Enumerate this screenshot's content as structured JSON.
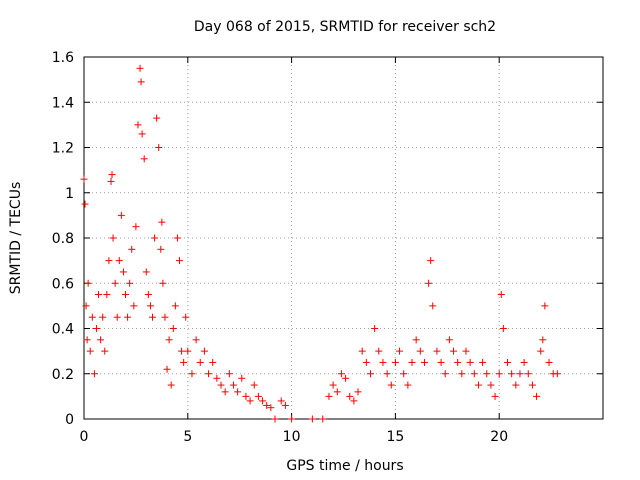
{
  "chart_data": {
    "type": "scatter",
    "title": "Day 068 of 2015, SRMTID for receiver sch2",
    "xlabel": "GPS time / hours",
    "ylabel": "SRMTID / TECUs",
    "xlim": [
      0,
      25
    ],
    "ylim": [
      0,
      1.6
    ],
    "x_ticks": [
      0,
      5,
      10,
      15,
      20
    ],
    "x_tick_labels": [
      "0",
      "5",
      "10",
      "15",
      "20"
    ],
    "y_ticks": [
      0,
      0.2,
      0.4,
      0.6,
      0.8,
      1.0,
      1.2,
      1.4,
      1.6
    ],
    "y_tick_labels": [
      "0",
      "0.2",
      "0.4",
      "0.6",
      "0.8",
      "1",
      "1.2",
      "1.4",
      "1.6"
    ],
    "grid": true,
    "marker": "+",
    "marker_color": "#ff0000",
    "series": [
      {
        "name": "SRMTID",
        "x": [
          0.0,
          0.05,
          0.1,
          0.15,
          0.2,
          0.3,
          0.4,
          0.5,
          0.6,
          0.7,
          0.8,
          0.9,
          1.0,
          1.1,
          1.2,
          1.3,
          1.35,
          1.4,
          1.5,
          1.6,
          1.7,
          1.8,
          1.9,
          2.0,
          2.1,
          2.2,
          2.3,
          2.4,
          2.5,
          2.6,
          2.7,
          2.75,
          2.8,
          2.9,
          3.0,
          3.1,
          3.2,
          3.3,
          3.4,
          3.5,
          3.6,
          3.7,
          3.75,
          3.8,
          3.9,
          4.0,
          4.1,
          4.2,
          4.3,
          4.4,
          4.5,
          4.6,
          4.7,
          4.8,
          4.9,
          5.0,
          5.2,
          5.4,
          5.6,
          5.8,
          6.0,
          6.2,
          6.4,
          6.6,
          6.8,
          7.0,
          7.2,
          7.4,
          7.6,
          7.8,
          8.0,
          8.2,
          8.4,
          8.6,
          8.8,
          9.0,
          9.2,
          9.5,
          9.7,
          10.0,
          11.0,
          11.5,
          11.8,
          12.0,
          12.2,
          12.4,
          12.6,
          12.8,
          13.0,
          13.2,
          13.4,
          13.6,
          13.8,
          14.0,
          14.2,
          14.4,
          14.6,
          14.8,
          15.0,
          15.2,
          15.4,
          15.6,
          15.8,
          16.0,
          16.2,
          16.4,
          16.6,
          16.7,
          16.8,
          17.0,
          17.2,
          17.4,
          17.6,
          17.8,
          18.0,
          18.2,
          18.4,
          18.6,
          18.8,
          19.0,
          19.2,
          19.4,
          19.6,
          19.8,
          20.0,
          20.1,
          20.2,
          20.4,
          20.6,
          20.8,
          21.0,
          21.2,
          21.4,
          21.6,
          21.8,
          22.0,
          22.1,
          22.2,
          22.4,
          22.6,
          22.8
        ],
        "y": [
          1.06,
          0.95,
          0.5,
          0.35,
          0.6,
          0.3,
          0.45,
          0.2,
          0.4,
          0.55,
          0.35,
          0.45,
          0.3,
          0.55,
          0.7,
          1.05,
          1.08,
          0.8,
          0.6,
          0.45,
          0.7,
          0.9,
          0.65,
          0.55,
          0.45,
          0.6,
          0.75,
          0.5,
          0.85,
          1.3,
          1.55,
          1.49,
          1.26,
          1.15,
          0.65,
          0.55,
          0.5,
          0.45,
          0.8,
          1.33,
          1.2,
          0.75,
          0.87,
          0.6,
          0.45,
          0.22,
          0.35,
          0.15,
          0.4,
          0.5,
          0.8,
          0.7,
          0.3,
          0.25,
          0.45,
          0.3,
          0.2,
          0.35,
          0.25,
          0.3,
          0.2,
          0.25,
          0.18,
          0.15,
          0.12,
          0.2,
          0.15,
          0.12,
          0.18,
          0.1,
          0.08,
          0.15,
          0.1,
          0.08,
          0.06,
          0.05,
          0.0,
          0.08,
          0.06,
          0.0,
          0.0,
          0.0,
          0.1,
          0.15,
          0.12,
          0.2,
          0.18,
          0.1,
          0.08,
          0.12,
          0.3,
          0.25,
          0.2,
          0.4,
          0.3,
          0.25,
          0.2,
          0.15,
          0.25,
          0.3,
          0.2,
          0.15,
          0.25,
          0.35,
          0.3,
          0.25,
          0.6,
          0.7,
          0.5,
          0.3,
          0.25,
          0.2,
          0.35,
          0.3,
          0.25,
          0.2,
          0.3,
          0.25,
          0.2,
          0.15,
          0.25,
          0.2,
          0.15,
          0.1,
          0.2,
          0.55,
          0.4,
          0.25,
          0.2,
          0.15,
          0.2,
          0.25,
          0.2,
          0.15,
          0.1,
          0.3,
          0.35,
          0.5,
          0.25,
          0.2,
          0.2
        ]
      }
    ]
  }
}
